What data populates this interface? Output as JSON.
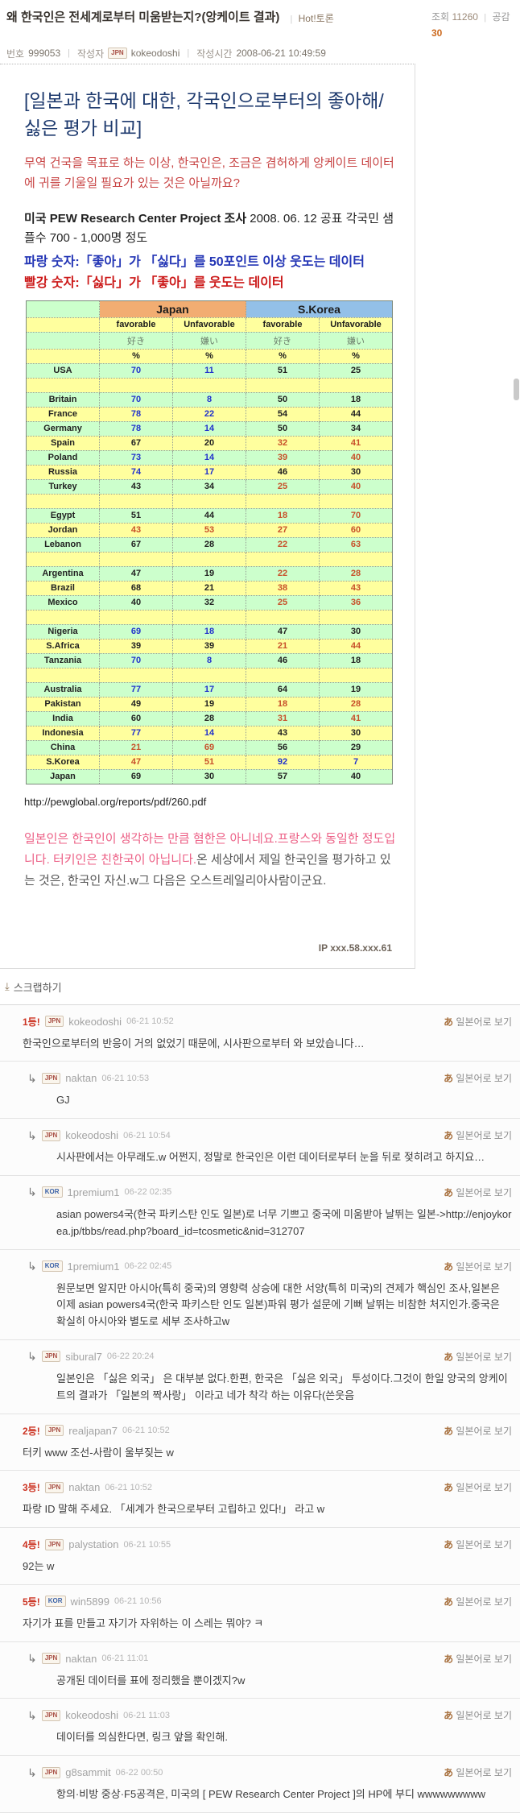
{
  "labels": {
    "sep": "|",
    "view_jp": "일본어로 보기"
  },
  "icons": {
    "japanese_a": "あ",
    "reply_arrow": "↳",
    "scrap": "⤓"
  },
  "colors": {
    "blue_number": "#2233cc",
    "red_number": "#c8502a",
    "japan_header": "#f2ad72",
    "korea_header": "#93c0e8",
    "row_green": "#ccffcc",
    "row_yellow": "#ffff9e",
    "pink_text": "#ec5f85",
    "rank_red": "#cc3322"
  },
  "header": {
    "title": "왜 한국인은 전세계로부터 미움받는지?(앙케이트 결과)",
    "hot_label": "Hot!토론",
    "views_label": "조회",
    "views": "11260",
    "likes_label": "공감",
    "likes": "30",
    "no_label": "번호",
    "no": "999053",
    "author_label": "작성자",
    "author_flag": "JPN",
    "author": "kokeodoshi",
    "time_label": "작성시간",
    "time": "2008-06-21 10:49:59"
  },
  "post": {
    "heading": "[일본과 한국에 대한, 각국인으로부터의 좋아해/싫은 평가 비교]",
    "intro": "무역 건국을 목표로 하는 이상, 한국인은, 조금은 겸허하게 앙케이트 데이터에 귀를 기울일 필요가 있는 것은 아닐까요?",
    "source_bold": "미국 PEW Research Center Project 조사",
    "source_rest": " 2008. 06. 12 공표 각국민 샘플수 700 - 1,000명 정도",
    "legend_blue": "파랑 숫자:「좋아」가 「싫다」를 50포인트 이상 웃도는 데이터",
    "legend_red": "빨강 숫자:「싫다」가 「좋아」를 웃도는 데이터",
    "link": "http://pewglobal.org/reports/pdf/260.pdf",
    "commentary_pink1": "일본인은 한국인이 생각하는 만큼 혐한은 아니네요.프랑스와 동일한 정도입니다. ",
    "commentary_pink2": "터키인은 친한국이 아닙니다.",
    "commentary_grey": "온 세상에서 제일 한국인을 평가하고 있는 것은, 한국인 자신.w그 다음은 오스트레일리아사람이군요.",
    "ip": "IP xxx.58.xxx.61",
    "scrap_label": "스크랩하기"
  },
  "chart_data": {
    "type": "table",
    "groups": [
      "Japan",
      "S.Korea"
    ],
    "sub_headers": [
      "favorable",
      "Unfavorable",
      "favorable",
      "Unfavorable"
    ],
    "jp_headers": [
      "好き",
      "嫌い",
      "好き",
      "嫌い"
    ],
    "units": [
      "%",
      "%",
      "%",
      "%"
    ],
    "legend": {
      "blue": "favorable exceeds unfavorable by 50+ points",
      "red": "unfavorable exceeds favorable"
    },
    "rows": [
      {
        "country": "USA",
        "values": [
          70,
          11,
          51,
          25
        ],
        "colors": [
          "b",
          "b",
          "k",
          "k"
        ]
      },
      {
        "country": "",
        "values": [
          "",
          "",
          "",
          ""
        ]
      },
      {
        "country": "Britain",
        "values": [
          70,
          8,
          50,
          18
        ],
        "colors": [
          "b",
          "b",
          "k",
          "k"
        ]
      },
      {
        "country": "France",
        "values": [
          78,
          22,
          54,
          44
        ],
        "colors": [
          "b",
          "b",
          "k",
          "k"
        ]
      },
      {
        "country": "Germany",
        "values": [
          78,
          14,
          50,
          34
        ],
        "colors": [
          "b",
          "b",
          "k",
          "k"
        ]
      },
      {
        "country": "Spain",
        "values": [
          67,
          20,
          32,
          41
        ],
        "colors": [
          "k",
          "k",
          "r",
          "r"
        ]
      },
      {
        "country": "Poland",
        "values": [
          73,
          14,
          39,
          40
        ],
        "colors": [
          "b",
          "b",
          "r",
          "r"
        ]
      },
      {
        "country": "Russia",
        "values": [
          74,
          17,
          46,
          30
        ],
        "colors": [
          "b",
          "b",
          "k",
          "k"
        ]
      },
      {
        "country": "Turkey",
        "values": [
          43,
          34,
          25,
          40
        ],
        "colors": [
          "k",
          "k",
          "r",
          "r"
        ]
      },
      {
        "country": "",
        "values": [
          "",
          "",
          "",
          ""
        ]
      },
      {
        "country": "Egypt",
        "values": [
          51,
          44,
          18,
          70
        ],
        "colors": [
          "k",
          "k",
          "r",
          "r"
        ]
      },
      {
        "country": "Jordan",
        "values": [
          43,
          53,
          27,
          60
        ],
        "colors": [
          "r",
          "r",
          "r",
          "r"
        ]
      },
      {
        "country": "Lebanon",
        "values": [
          67,
          28,
          22,
          63
        ],
        "colors": [
          "k",
          "k",
          "r",
          "r"
        ]
      },
      {
        "country": "",
        "values": [
          "",
          "",
          "",
          ""
        ]
      },
      {
        "country": "Argentina",
        "values": [
          47,
          19,
          22,
          28
        ],
        "colors": [
          "k",
          "k",
          "r",
          "r"
        ]
      },
      {
        "country": "Brazil",
        "values": [
          68,
          21,
          38,
          43
        ],
        "colors": [
          "k",
          "k",
          "r",
          "r"
        ]
      },
      {
        "country": "Mexico",
        "values": [
          40,
          32,
          25,
          36
        ],
        "colors": [
          "k",
          "k",
          "r",
          "r"
        ]
      },
      {
        "country": "",
        "values": [
          "",
          "",
          "",
          ""
        ]
      },
      {
        "country": "Nigeria",
        "values": [
          69,
          18,
          47,
          30
        ],
        "colors": [
          "b",
          "b",
          "k",
          "k"
        ]
      },
      {
        "country": "S.Africa",
        "values": [
          39,
          39,
          21,
          44
        ],
        "colors": [
          "k",
          "k",
          "r",
          "r"
        ]
      },
      {
        "country": "Tanzania",
        "values": [
          70,
          8,
          46,
          18
        ],
        "colors": [
          "b",
          "b",
          "k",
          "k"
        ]
      },
      {
        "country": "",
        "values": [
          "",
          "",
          "",
          ""
        ]
      },
      {
        "country": "Australia",
        "values": [
          77,
          17,
          64,
          19
        ],
        "colors": [
          "b",
          "b",
          "k",
          "k"
        ]
      },
      {
        "country": "Pakistan",
        "values": [
          49,
          19,
          18,
          28
        ],
        "colors": [
          "k",
          "k",
          "r",
          "r"
        ]
      },
      {
        "country": "India",
        "values": [
          60,
          28,
          31,
          41
        ],
        "colors": [
          "k",
          "k",
          "r",
          "r"
        ]
      },
      {
        "country": "Indonesia",
        "values": [
          77,
          14,
          43,
          30
        ],
        "colors": [
          "b",
          "b",
          "k",
          "k"
        ]
      },
      {
        "country": "China",
        "values": [
          21,
          69,
          56,
          29
        ],
        "colors": [
          "r",
          "r",
          "k",
          "k"
        ]
      },
      {
        "country": "S.Korea",
        "values": [
          47,
          51,
          92,
          7
        ],
        "colors": [
          "r",
          "r",
          "b",
          "b"
        ]
      },
      {
        "country": "Japan",
        "values": [
          69,
          30,
          57,
          40
        ],
        "colors": [
          "k",
          "k",
          "k",
          "k"
        ]
      }
    ]
  },
  "comments": [
    {
      "rank": "1등!",
      "flag": "JPN",
      "user": "kokeodoshi",
      "time": "06-21 10:52",
      "reply": false,
      "text": "한국인으로부터의 반응이 거의 없었기 때문에, 시사판으로부터 와 보았습니다…"
    },
    {
      "rank": "",
      "flag": "JPN",
      "user": "naktan",
      "time": "06-21 10:53",
      "reply": true,
      "text": "GJ"
    },
    {
      "rank": "",
      "flag": "JPN",
      "user": "kokeodoshi",
      "time": "06-21 10:54",
      "reply": true,
      "text": "시사판에서는 아무래도.w  어쩐지, 정말로 한국인은 이런 데이터로부터 눈을 뒤로 젖히려고 하지요…"
    },
    {
      "rank": "",
      "flag": "KOR",
      "user": "1premium1",
      "time": "06-22 02:35",
      "reply": true,
      "text": "asian powers4국(한국 파키스탄 인도 일본)로 너무 기쁘고 중국에 미움받아 날뛰는 일본->http://enjoykorea.jp/tbbs/read.php?board_id=tcosmetic&nid=312707"
    },
    {
      "rank": "",
      "flag": "KOR",
      "user": "1premium1",
      "time": "06-22 02:45",
      "reply": true,
      "text": "원문보면 알지만 아시아(특히 중국)의 영향력 상승에 대한 서양(특히 미국)의 견제가 핵심인 조사,일본은 이제 asian powers4국(한국 파키스탄 인도 일본)파워 평가 설문에 기뻐 날뛰는 비참한 처지인가.중국은 확실히 아시아와 별도로 세부 조사하고w"
    },
    {
      "rank": "",
      "flag": "JPN",
      "user": "sibural7",
      "time": "06-22 20:24",
      "reply": true,
      "text": "일본인은 「싫은 외국」 은 대부분 없다.한편, 한국은 「싫은 외국」 투성이다.그것이 한일 양국의 앙케이트의 결과가 「일본의 짝사랑」 이라고 네가 착각 하는 이유다(쓴웃음"
    },
    {
      "rank": "2등!",
      "flag": "JPN",
      "user": "realjapan7",
      "time": "06-21 10:52",
      "reply": false,
      "text": "터키 www  조선-사람이 울부짖는 w"
    },
    {
      "rank": "3등!",
      "flag": "JPN",
      "user": "naktan",
      "time": "06-21 10:52",
      "reply": false,
      "text": "파랑 ID 말해 주세요. 「세계가 한국으로부터 고립하고 있다!」 라고 w"
    },
    {
      "rank": "4등!",
      "flag": "JPN",
      "user": "palystation",
      "time": "06-21 10:55",
      "reply": false,
      "text": "92는 w"
    },
    {
      "rank": "5등!",
      "flag": "KOR",
      "user": "win5899",
      "time": "06-21 10:56",
      "reply": false,
      "text": "자기가 표를 만들고 자기가 자위하는 이 스레는 뭐야? ㅋ"
    },
    {
      "rank": "",
      "flag": "JPN",
      "user": "naktan",
      "time": "06-21 11:01",
      "reply": true,
      "text": "공개된 데이터를 표에 정리했을 뿐이겠지?w"
    },
    {
      "rank": "",
      "flag": "JPN",
      "user": "kokeodoshi",
      "time": "06-21 11:03",
      "reply": true,
      "text": "데이터를 의심한다면, 링크 앞을 확인해."
    },
    {
      "rank": "",
      "flag": "JPN",
      "user": "g8sammit",
      "time": "06-22 00:50",
      "reply": true,
      "text": "항의·비방 중상·F5공격은, 미국의 [ PEW Research Center Project ]의 HP에 부디 wwwwwwwww"
    }
  ]
}
